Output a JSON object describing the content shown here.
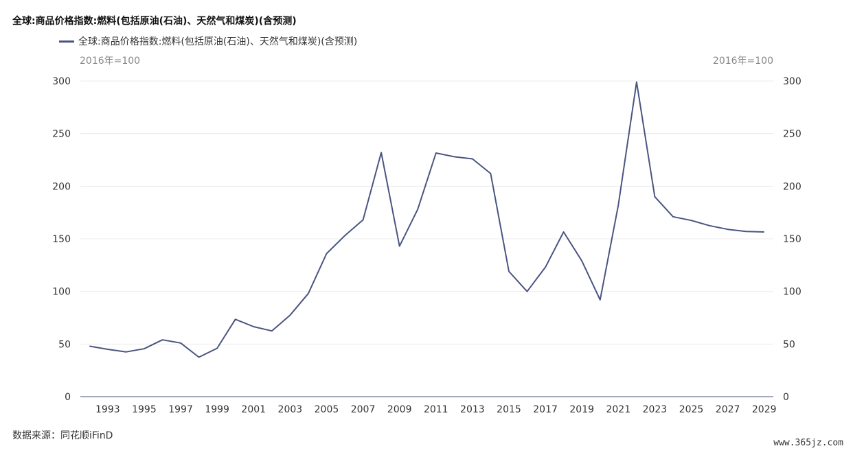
{
  "chart_data": {
    "type": "line",
    "title": "全球:商品价格指数:燃料(包括原油(石油)、天然气和煤炭)(含预测)",
    "unit_left": "2016年=100",
    "unit_right": "2016年=100",
    "x": [
      1992,
      1993,
      1994,
      1995,
      1996,
      1997,
      1998,
      1999,
      2000,
      2001,
      2002,
      2003,
      2004,
      2005,
      2006,
      2007,
      2008,
      2009,
      2010,
      2011,
      2012,
      2013,
      2014,
      2015,
      2016,
      2017,
      2018,
      2019,
      2020,
      2021,
      2022,
      2023,
      2024,
      2025,
      2026,
      2027,
      2028,
      2029
    ],
    "x_tick_labels": [
      "1993",
      "1995",
      "1997",
      "1999",
      "2001",
      "2003",
      "2005",
      "2007",
      "2009",
      "2011",
      "2013",
      "2015",
      "2017",
      "2019",
      "2021",
      "2023",
      "2025",
      "2027",
      "2029"
    ],
    "x_tick_values": [
      1993,
      1995,
      1997,
      1999,
      2001,
      2003,
      2005,
      2007,
      2009,
      2011,
      2013,
      2015,
      2017,
      2019,
      2021,
      2023,
      2025,
      2027,
      2029
    ],
    "ylim": [
      0,
      300
    ],
    "y_ticks": [
      0,
      50,
      100,
      150,
      200,
      250,
      300
    ],
    "y_tick_labels": [
      "0",
      "50",
      "100",
      "150",
      "200",
      "250",
      "300"
    ],
    "series": [
      {
        "name": "全球:商品价格指数:燃料(包括原油(石油)、天然气和煤炭)(含预测)",
        "color": "#4a5480",
        "values": [
          48,
          45,
          42.5,
          45.5,
          54,
          51,
          37.5,
          46,
          73.5,
          66.5,
          62.5,
          77.5,
          98,
          136,
          153,
          168,
          232,
          143,
          178,
          231.5,
          228,
          226,
          212,
          119,
          100,
          123,
          156.5,
          129,
          92,
          182,
          299,
          190,
          171,
          167.5,
          162.5,
          159,
          157,
          156.5
        ]
      }
    ],
    "grid": true,
    "legend_position": "top-left"
  },
  "footer": {
    "source": "数据来源：同花顺iFinD",
    "watermark": "www.365jz.com"
  }
}
